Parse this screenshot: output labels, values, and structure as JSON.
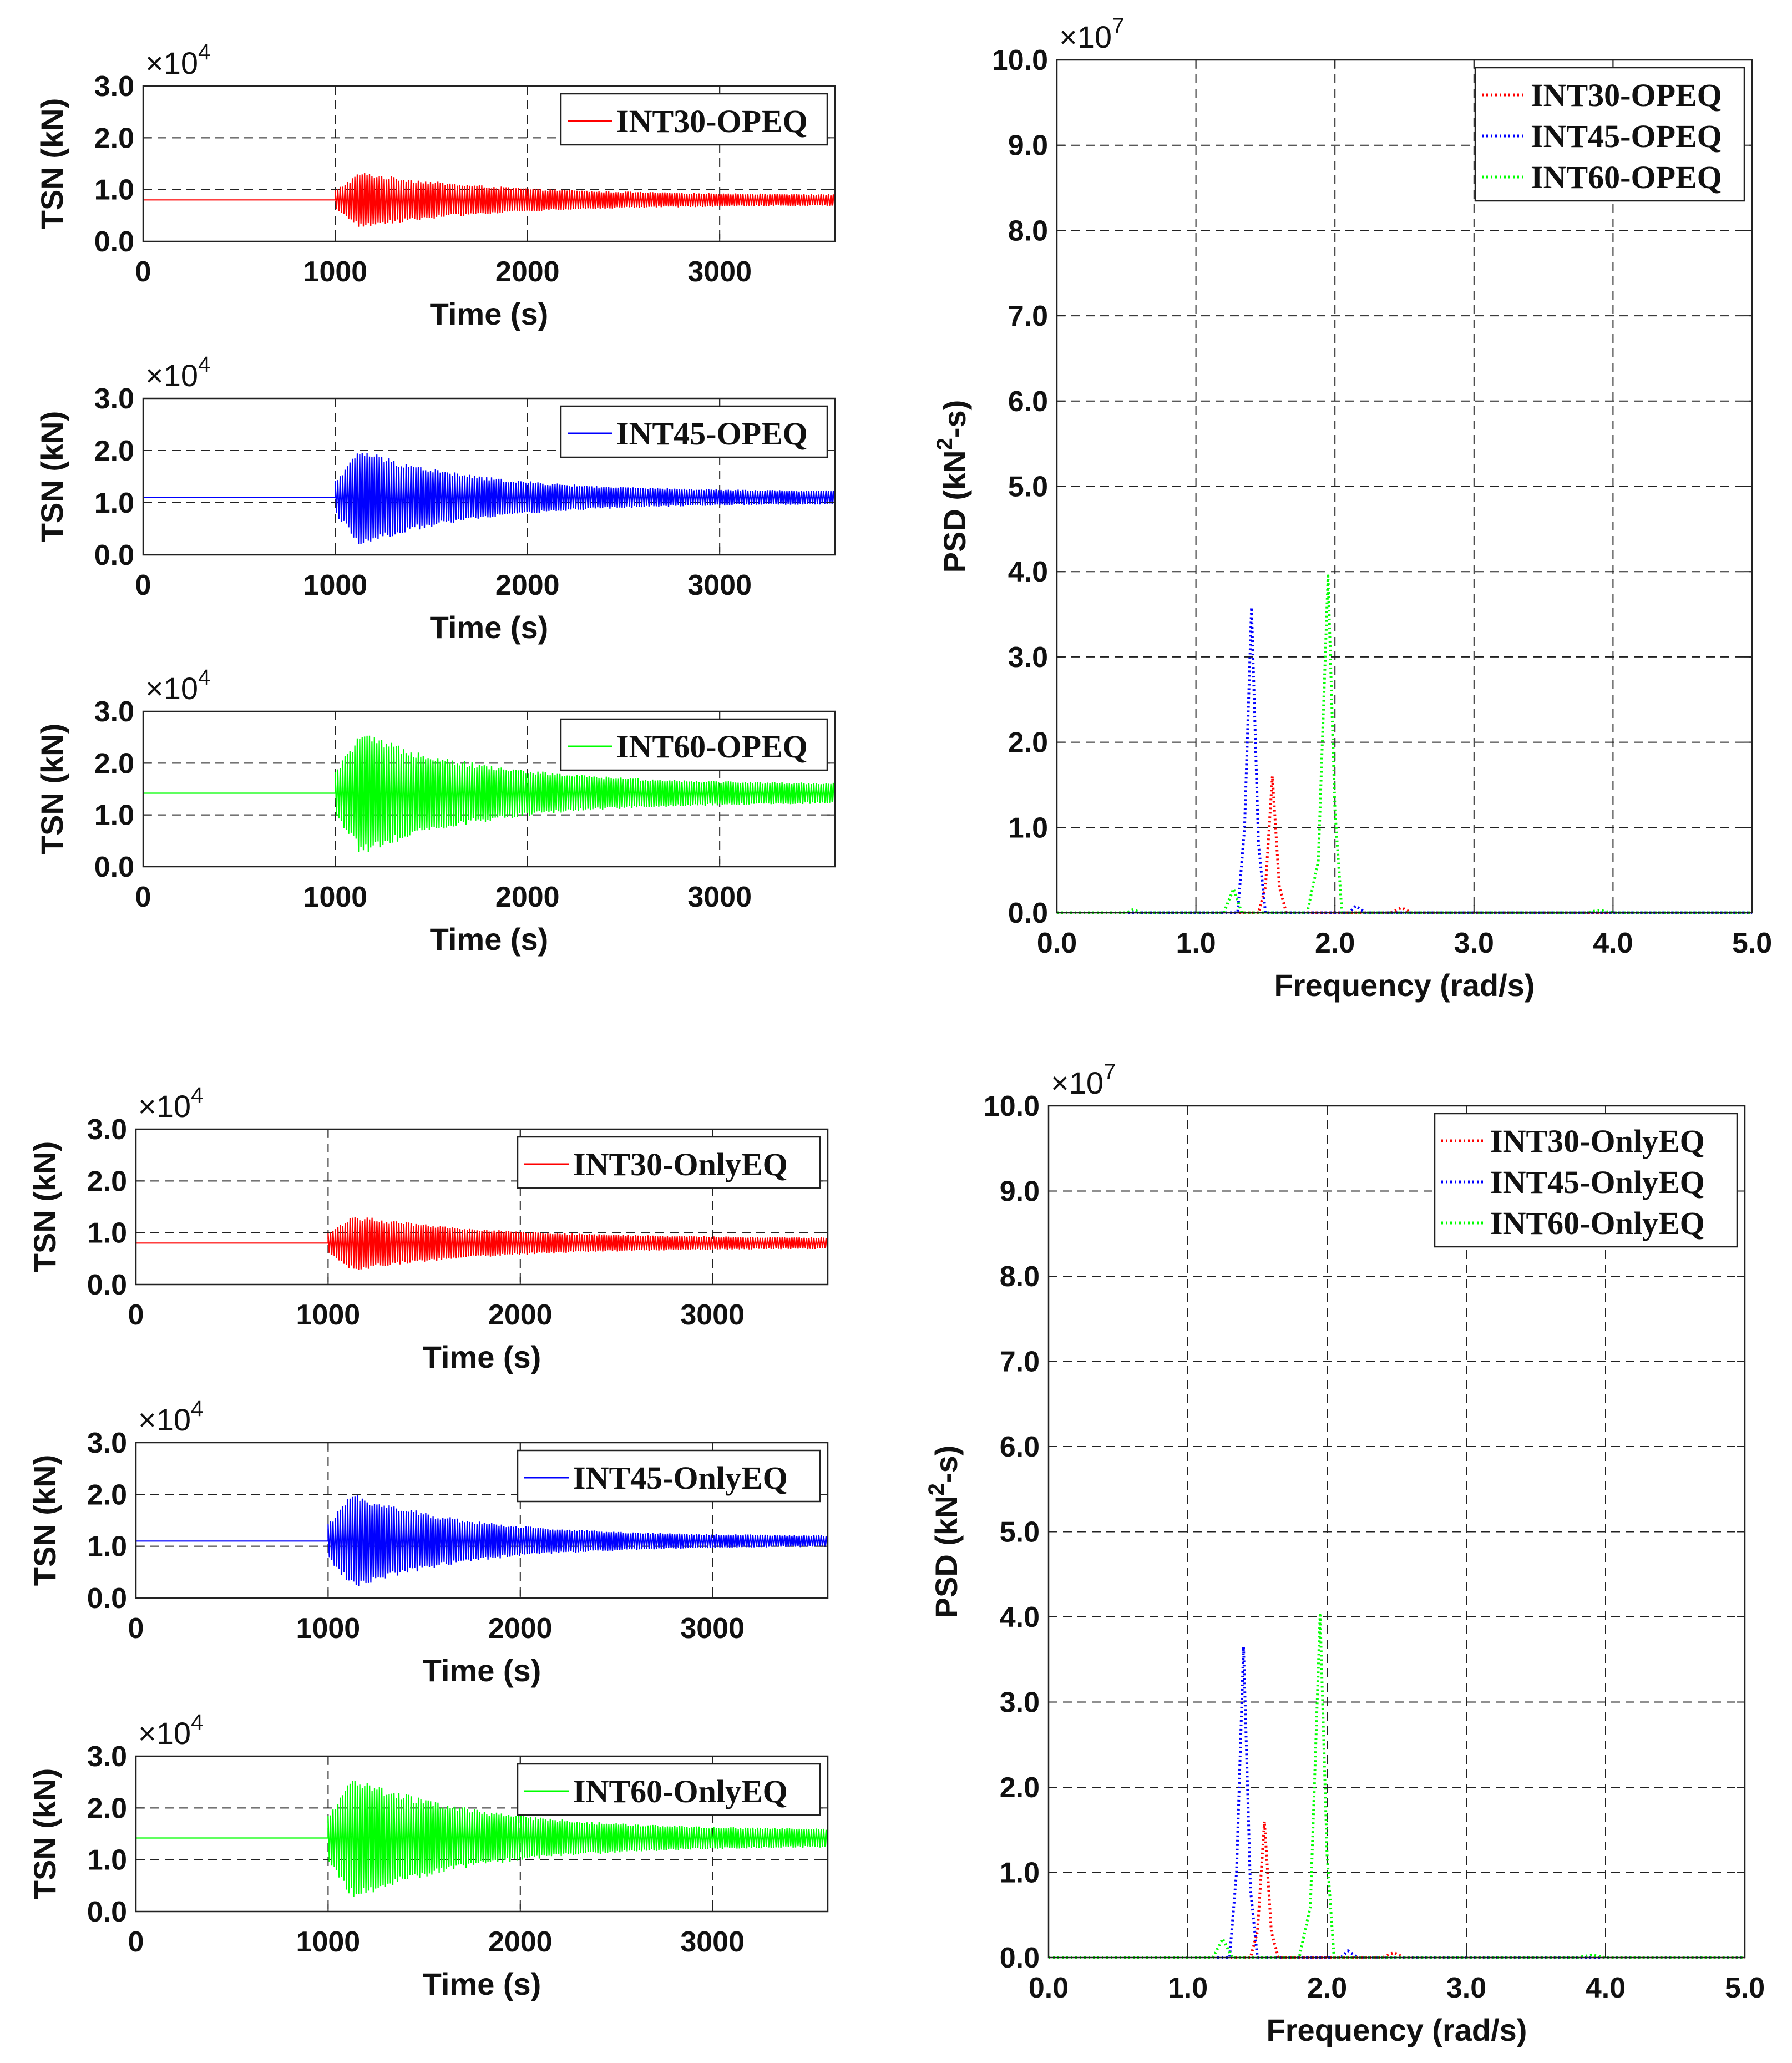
{
  "chart_data": [
    {
      "id": "ts_int30_opeq",
      "type": "line",
      "group": "OPEQ",
      "xlabel": "Time (s)",
      "ylabel": "TSN (kN)",
      "exponent_text": "×10",
      "exponent_power": "4",
      "xlim": [
        0,
        3600
      ],
      "ylim": [
        0,
        3
      ],
      "xticks": [
        0,
        1000,
        2000,
        3000
      ],
      "xtick_labels": [
        "0",
        "1000",
        "2000",
        "3000"
      ],
      "yticks": [
        0,
        1,
        2,
        3
      ],
      "ytick_labels": [
        "0.0",
        "1.0",
        "2.0",
        "3.0"
      ],
      "grid": true,
      "legend_position": "top-right",
      "series": [
        {
          "name": "INT30-OPEQ",
          "color": "#ff0000",
          "style": "solid",
          "mean": 0.8,
          "onset": 1000,
          "peak_amp": 0.55,
          "decay": 700,
          "steady_amp": 0.1
        }
      ]
    },
    {
      "id": "ts_int45_opeq",
      "type": "line",
      "group": "OPEQ",
      "xlabel": "Time (s)",
      "ylabel": "TSN (kN)",
      "exponent_text": "×10",
      "exponent_power": "4",
      "xlim": [
        0,
        3600
      ],
      "ylim": [
        0,
        3
      ],
      "xticks": [
        0,
        1000,
        2000,
        3000
      ],
      "xtick_labels": [
        "0",
        "1000",
        "2000",
        "3000"
      ],
      "yticks": [
        0,
        1,
        2,
        3
      ],
      "ytick_labels": [
        "0.0",
        "1.0",
        "2.0",
        "3.0"
      ],
      "grid": true,
      "legend_position": "top-right",
      "series": [
        {
          "name": "INT45-OPEQ",
          "color": "#0000ff",
          "style": "solid",
          "mean": 1.1,
          "onset": 1000,
          "peak_amp": 0.95,
          "decay": 600,
          "steady_amp": 0.12
        }
      ]
    },
    {
      "id": "ts_int60_opeq",
      "type": "line",
      "group": "OPEQ",
      "xlabel": "Time (s)",
      "ylabel": "TSN (kN)",
      "exponent_text": "×10",
      "exponent_power": "4",
      "xlim": [
        0,
        3600
      ],
      "ylim": [
        0,
        3
      ],
      "xticks": [
        0,
        1000,
        2000,
        3000
      ],
      "xtick_labels": [
        "0",
        "1000",
        "2000",
        "3000"
      ],
      "yticks": [
        0,
        1,
        2,
        3
      ],
      "ytick_labels": [
        "0.0",
        "1.0",
        "2.0",
        "3.0"
      ],
      "grid": true,
      "legend_position": "top-right",
      "series": [
        {
          "name": "INT60-OPEQ",
          "color": "#00ff00",
          "style": "solid",
          "mean": 1.42,
          "onset": 1000,
          "peak_amp": 1.2,
          "decay": 650,
          "steady_amp": 0.18
        }
      ]
    },
    {
      "id": "psd_opeq",
      "type": "line",
      "group": "OPEQ",
      "xlabel": "Frequency (rad/s)",
      "ylabel": "PSD (kN",
      "ylabel_sup": "2",
      "ylabel_tail": "-s)",
      "exponent_text": "×10",
      "exponent_power": "7",
      "xlim": [
        0,
        5
      ],
      "ylim": [
        0,
        10
      ],
      "xticks": [
        0,
        1,
        2,
        3,
        4,
        5
      ],
      "xtick_labels": [
        "0.0",
        "1.0",
        "2.0",
        "3.0",
        "4.0",
        "5.0"
      ],
      "yticks": [
        0,
        1,
        2,
        3,
        4,
        5,
        6,
        7,
        8,
        9,
        10
      ],
      "ytick_labels": [
        "0.0",
        "1.0",
        "2.0",
        "3.0",
        "4.0",
        "5.0",
        "6.0",
        "7.0",
        "8.0",
        "9.0",
        "10.0"
      ],
      "grid": true,
      "legend_position": "top-right",
      "series": [
        {
          "name": "INT30-OPEQ",
          "color": "#ff0000",
          "style": "dotted",
          "x": [
            0,
            1.45,
            1.5,
            1.55,
            1.6,
            1.65,
            2.4,
            2.48,
            2.55,
            5.0
          ],
          "y": [
            0,
            0,
            0.3,
            1.6,
            0.3,
            0,
            0,
            0.06,
            0,
            0
          ]
        },
        {
          "name": "INT45-OPEQ",
          "color": "#0000ff",
          "style": "dotted",
          "x": [
            0,
            1.3,
            1.35,
            1.4,
            1.45,
            1.5,
            2.1,
            2.15,
            2.22,
            5.0
          ],
          "y": [
            0,
            0,
            1.0,
            3.58,
            0.8,
            0,
            0,
            0.08,
            0,
            0
          ]
        },
        {
          "name": "INT60-OPEQ",
          "color": "#00ff00",
          "style": "dotted",
          "x": [
            0,
            0.5,
            0.55,
            0.6,
            1.2,
            1.27,
            1.33,
            1.8,
            1.88,
            1.95,
            2.0,
            2.05,
            3.8,
            3.9,
            4.0,
            5.0
          ],
          "y": [
            0,
            0,
            0.04,
            0,
            0,
            0.28,
            0,
            0,
            0.6,
            3.95,
            1.2,
            0,
            0,
            0.03,
            0,
            0
          ]
        }
      ]
    },
    {
      "id": "ts_int30_onlyeq",
      "type": "line",
      "group": "OnlyEQ",
      "xlabel": "Time (s)",
      "ylabel": "TSN (kN)",
      "exponent_text": "×10",
      "exponent_power": "4",
      "xlim": [
        0,
        3600
      ],
      "ylim": [
        0,
        3
      ],
      "xticks": [
        0,
        1000,
        2000,
        3000
      ],
      "xtick_labels": [
        "0",
        "1000",
        "2000",
        "3000"
      ],
      "yticks": [
        0,
        1,
        2,
        3
      ],
      "ytick_labels": [
        "0.0",
        "1.0",
        "2.0",
        "3.0"
      ],
      "grid": true,
      "legend_position": "top-right",
      "series": [
        {
          "name": "INT30-OnlyEQ",
          "color": "#ff0000",
          "style": "solid",
          "mean": 0.8,
          "onset": 1000,
          "peak_amp": 0.55,
          "decay": 700,
          "steady_amp": 0.1
        }
      ]
    },
    {
      "id": "ts_int45_onlyeq",
      "type": "line",
      "group": "OnlyEQ",
      "xlabel": "Time (s)",
      "ylabel": "TSN (kN)",
      "exponent_text": "×10",
      "exponent_power": "4",
      "xlim": [
        0,
        3600
      ],
      "ylim": [
        0,
        3
      ],
      "xticks": [
        0,
        1000,
        2000,
        3000
      ],
      "xtick_labels": [
        "0",
        "1000",
        "2000",
        "3000"
      ],
      "yticks": [
        0,
        1,
        2,
        3
      ],
      "ytick_labels": [
        "0.0",
        "1.0",
        "2.0",
        "3.0"
      ],
      "grid": true,
      "legend_position": "top-right",
      "series": [
        {
          "name": "INT45-OnlyEQ",
          "color": "#0000ff",
          "style": "solid",
          "mean": 1.1,
          "onset": 1000,
          "peak_amp": 0.95,
          "decay": 600,
          "steady_amp": 0.1
        }
      ]
    },
    {
      "id": "ts_int60_onlyeq",
      "type": "line",
      "group": "OnlyEQ",
      "xlabel": "Time (s)",
      "ylabel": "TSN (kN)",
      "exponent_text": "×10",
      "exponent_power": "4",
      "xlim": [
        0,
        3600
      ],
      "ylim": [
        0,
        3
      ],
      "xticks": [
        0,
        1000,
        2000,
        3000
      ],
      "xtick_labels": [
        "0",
        "1000",
        "2000",
        "3000"
      ],
      "yticks": [
        0,
        1,
        2,
        3
      ],
      "ytick_labels": [
        "0.0",
        "1.0",
        "2.0",
        "3.0"
      ],
      "grid": true,
      "legend_position": "top-right",
      "series": [
        {
          "name": "INT60-OnlyEQ",
          "color": "#00ff00",
          "style": "solid",
          "mean": 1.42,
          "onset": 1000,
          "peak_amp": 1.22,
          "decay": 650,
          "steady_amp": 0.16
        }
      ]
    },
    {
      "id": "psd_onlyeq",
      "type": "line",
      "group": "OnlyEQ",
      "xlabel": "Frequency (rad/s)",
      "ylabel": "PSD (kN",
      "ylabel_sup": "2",
      "ylabel_tail": "-s)",
      "exponent_text": "×10",
      "exponent_power": "7",
      "xlim": [
        0,
        5
      ],
      "ylim": [
        0,
        10
      ],
      "xticks": [
        0,
        1,
        2,
        3,
        4,
        5
      ],
      "xtick_labels": [
        "0.0",
        "1.0",
        "2.0",
        "3.0",
        "4.0",
        "5.0"
      ],
      "yticks": [
        0,
        1,
        2,
        3,
        4,
        5,
        6,
        7,
        8,
        9,
        10
      ],
      "ytick_labels": [
        "0.0",
        "1.0",
        "2.0",
        "3.0",
        "4.0",
        "5.0",
        "6.0",
        "7.0",
        "8.0",
        "9.0",
        "10.0"
      ],
      "grid": true,
      "legend_position": "top-right",
      "series": [
        {
          "name": "INT30-OnlyEQ",
          "color": "#ff0000",
          "style": "dotted",
          "x": [
            0,
            1.45,
            1.5,
            1.55,
            1.6,
            1.65,
            2.4,
            2.48,
            2.55,
            5.0
          ],
          "y": [
            0,
            0,
            0.3,
            1.6,
            0.3,
            0,
            0,
            0.06,
            0,
            0
          ]
        },
        {
          "name": "INT45-OnlyEQ",
          "color": "#0000ff",
          "style": "dotted",
          "x": [
            0,
            1.3,
            1.35,
            1.4,
            1.45,
            1.5,
            2.1,
            2.15,
            2.22,
            5.0
          ],
          "y": [
            0,
            0,
            1.0,
            3.65,
            0.8,
            0,
            0,
            0.08,
            0,
            0
          ]
        },
        {
          "name": "INT60-OnlyEQ",
          "color": "#00ff00",
          "style": "dotted",
          "x": [
            0,
            1.18,
            1.25,
            1.32,
            1.8,
            1.88,
            1.95,
            2.0,
            2.05,
            3.8,
            3.9,
            4.0,
            5.0
          ],
          "y": [
            0,
            0,
            0.22,
            0,
            0,
            0.6,
            4.02,
            1.2,
            0,
            0,
            0.03,
            0,
            0
          ]
        }
      ]
    }
  ]
}
